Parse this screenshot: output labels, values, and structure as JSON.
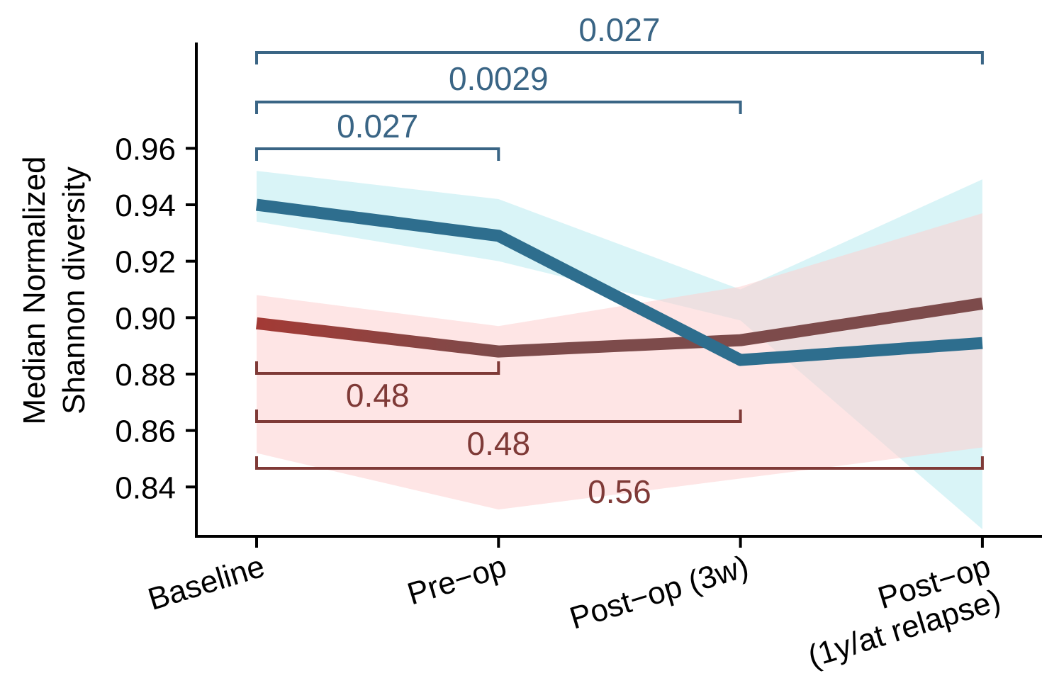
{
  "chart_data": {
    "type": "line",
    "title": "",
    "ylabel_line1": "Median Normalized",
    "ylabel_line2": "Shannon diversity",
    "xlabel": "",
    "categories": [
      "Baseline",
      "Pre−op",
      "Post−op (3w)",
      "Post−op\n(1y/at relapse)"
    ],
    "ylim": [
      0.8225,
      0.9975
    ],
    "yticks": [
      0.84,
      0.86,
      0.88,
      0.9,
      0.92,
      0.94,
      0.96
    ],
    "ytick_labels": [
      "0.84",
      "0.86",
      "0.88",
      "0.90",
      "0.92",
      "0.94",
      "0.96"
    ],
    "grid": false,
    "legend": "none",
    "series": [
      {
        "key": "blue",
        "color": "#2e6e8e",
        "band_color": "#9fe3ea",
        "values": [
          0.94,
          0.929,
          0.885,
          0.891
        ],
        "upper": [
          0.952,
          0.942,
          0.91,
          0.949
        ],
        "lower": [
          0.934,
          0.92,
          0.899,
          0.825
        ]
      },
      {
        "key": "red",
        "color": "#7d4b4b",
        "start_color": "#a33a35",
        "band_color": "#fecfcf",
        "values": [
          0.898,
          0.888,
          0.892,
          0.905
        ],
        "upper": [
          0.908,
          0.897,
          0.911,
          0.937
        ],
        "lower": [
          0.852,
          0.832,
          0.843,
          0.854
        ]
      }
    ],
    "comparisons": [
      {
        "series": "blue",
        "from": 0,
        "to": 3,
        "label": "0.027",
        "color": "#3a6585"
      },
      {
        "series": "blue",
        "from": 0,
        "to": 2,
        "label": "0.0029",
        "color": "#3a6585"
      },
      {
        "series": "blue",
        "from": 0,
        "to": 1,
        "label": "0.027",
        "color": "#3a6585"
      },
      {
        "series": "red",
        "from": 0,
        "to": 1,
        "label": "0.48",
        "color": "#7f3a37"
      },
      {
        "series": "red",
        "from": 0,
        "to": 2,
        "label": "0.48",
        "color": "#7f3a37"
      },
      {
        "series": "red",
        "from": 0,
        "to": 3,
        "label": "0.56",
        "color": "#7f3a37"
      }
    ]
  }
}
